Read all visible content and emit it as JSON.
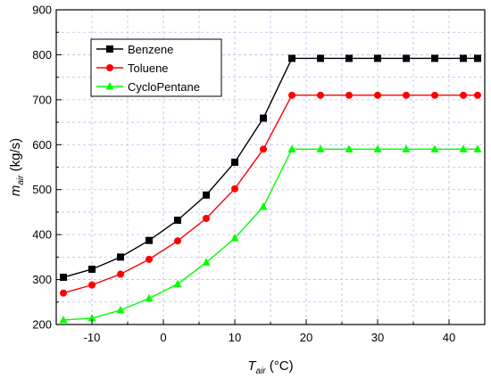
{
  "chart_data": {
    "type": "line",
    "xlabel": {
      "main": "T",
      "sub": "air",
      "unit": " (°C)"
    },
    "ylabel": {
      "main": "m",
      "sub": "air",
      "unit": " (kg/s)"
    },
    "xlim": [
      -15,
      45
    ],
    "ylim": [
      200,
      900
    ],
    "x_ticks": [
      -10,
      0,
      10,
      20,
      30,
      40
    ],
    "y_ticks": [
      200,
      300,
      400,
      500,
      600,
      700,
      800,
      900
    ],
    "grid": true,
    "legend_position": "top-left",
    "series": [
      {
        "name": "Benzene",
        "color": "#000000",
        "marker": "square",
        "x": [
          -14,
          -10,
          -6,
          -2,
          2,
          6,
          10,
          14,
          18,
          22,
          26,
          30,
          34,
          38,
          42,
          44
        ],
        "y": [
          305,
          323,
          350,
          387,
          432,
          488,
          561,
          659,
          792,
          792,
          792,
          792,
          792,
          792,
          792,
          792
        ]
      },
      {
        "name": "Toluene",
        "color": "#ff0000",
        "marker": "circle",
        "x": [
          -14,
          -10,
          -6,
          -2,
          2,
          6,
          10,
          14,
          18,
          22,
          26,
          30,
          34,
          38,
          42,
          44
        ],
        "y": [
          270,
          288,
          312,
          345,
          386,
          436,
          502,
          590,
          710,
          710,
          710,
          710,
          710,
          710,
          710,
          710
        ]
      },
      {
        "name": "CycloPentane",
        "color": "#00ff00",
        "marker": "triangle",
        "x": [
          -14,
          -10,
          -6,
          -2,
          2,
          6,
          10,
          14,
          18,
          22,
          26,
          30,
          34,
          38,
          42,
          44
        ],
        "y": [
          210,
          214,
          232,
          258,
          290,
          338,
          392,
          462,
          590,
          590,
          590,
          590,
          590,
          590,
          590,
          590
        ]
      }
    ]
  }
}
